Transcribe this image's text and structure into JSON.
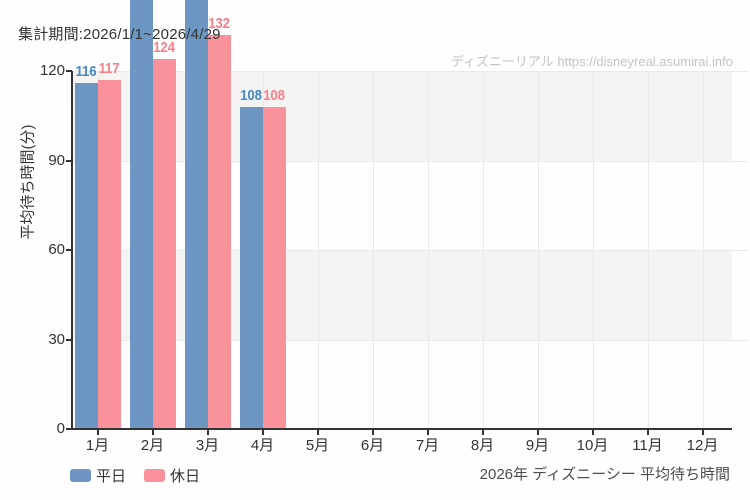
{
  "header": {
    "title": "集計期間:2026/1/1~2026/4/29"
  },
  "watermark": {
    "text": "ディズニーリアル https://disneyreal.asumirai.info"
  },
  "footer": {
    "caption": "2026年 ディズニーシー 平均待ち時間"
  },
  "colors": {
    "weekday_bar": "#6d97c2",
    "weekday_label": "#4787c6",
    "holiday_bar": "#fa929b",
    "holiday_label": "#f97f8a",
    "axis": "#333333",
    "tick_text": "#333333",
    "band_gray": "#f4f4f3",
    "grid_line": "#e9e9e9",
    "watermark_text": "#c3c3c3",
    "footer_text": "#4d4d4d"
  },
  "chart_data": {
    "type": "bar",
    "title": "集計期間:2026/1/1~2026/4/29",
    "ylabel": "平均待ち時間(分)",
    "xlabel": "",
    "categories": [
      "1月",
      "2月",
      "3月",
      "4月",
      "5月",
      "6月",
      "7月",
      "8月",
      "9月",
      "10月",
      "11月",
      "12月"
    ],
    "series": [
      {
        "key": "weekday",
        "name": "平日",
        "color": "#6d97c2",
        "label_color": "#4787c6",
        "values": [
          116,
          null,
          null,
          108,
          null,
          null,
          null,
          null,
          null,
          null,
          null,
          null
        ],
        "clipped_above": [
          false,
          true,
          true,
          false,
          false,
          false,
          false,
          false,
          false,
          false,
          false,
          false
        ]
      },
      {
        "key": "holiday",
        "name": "休日",
        "color": "#fa929b",
        "label_color": "#f97f8a",
        "values": [
          117,
          124,
          132,
          108,
          null,
          null,
          null,
          null,
          null,
          null,
          null,
          null
        ],
        "clipped_above": [
          false,
          false,
          false,
          false,
          false,
          false,
          false,
          false,
          false,
          false,
          false,
          false
        ]
      }
    ],
    "yticks": [
      0,
      30,
      60,
      90,
      120
    ],
    "ylim_visible": [
      0,
      144
    ],
    "grid": {
      "vertical_lines": "month-centers",
      "horizontal_bands": true,
      "band_rows_gray": [
        [
          120,
          90
        ],
        [
          60,
          30
        ]
      ]
    },
    "legend_position": "bottom-left"
  },
  "legend": {
    "items": [
      {
        "key": "weekday",
        "label": "平日",
        "color": "#6d97c2"
      },
      {
        "key": "holiday",
        "label": "休日",
        "color": "#fa929b"
      }
    ]
  }
}
